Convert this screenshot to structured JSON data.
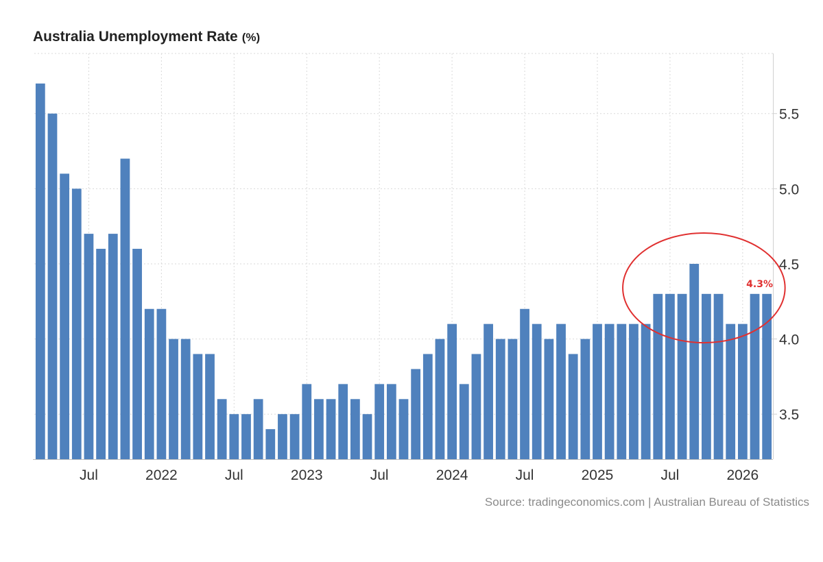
{
  "chart_data": {
    "type": "bar",
    "title": "Australia Unemployment Rate",
    "unit": "(%)",
    "source": "Source: tradingeconomics.com | Australian Bureau of Statistics",
    "series_color": "#4f81bd",
    "highlight_color": "#e03030",
    "ylim": [
      3.2,
      5.9
    ],
    "y_ticks": [
      3.5,
      4.0,
      4.5,
      5.0,
      5.5
    ],
    "y_tick_labels": [
      "3.5",
      "4.0",
      "4.5",
      "5.0",
      "5.5"
    ],
    "grid": true,
    "values": [
      5.7,
      5.5,
      5.1,
      5.0,
      4.7,
      4.6,
      4.7,
      5.2,
      4.6,
      4.2,
      4.2,
      4.0,
      4.0,
      3.9,
      3.9,
      3.6,
      3.5,
      3.5,
      3.6,
      3.4,
      3.5,
      3.5,
      3.7,
      3.6,
      3.6,
      3.7,
      3.6,
      3.5,
      3.7,
      3.7,
      3.6,
      3.8,
      3.9,
      4.0,
      4.1,
      3.7,
      3.9,
      4.1,
      4.0,
      4.0,
      4.2,
      4.1,
      4.0,
      4.1,
      3.9,
      4.0,
      4.1,
      4.1,
      4.1,
      4.1,
      4.1,
      4.3,
      4.3,
      4.3,
      4.5,
      4.3,
      4.3,
      4.1,
      4.1,
      4.3,
      4.3
    ],
    "x_ticks": [
      {
        "index": 4,
        "label": "Jul"
      },
      {
        "index": 10,
        "label": "2022"
      },
      {
        "index": 16,
        "label": "Jul"
      },
      {
        "index": 22,
        "label": "2023"
      },
      {
        "index": 28,
        "label": "Jul"
      },
      {
        "index": 34,
        "label": "2024"
      },
      {
        "index": 40,
        "label": "Jul"
      },
      {
        "index": 46,
        "label": "2025"
      },
      {
        "index": 52,
        "label": "Jul"
      },
      {
        "index": 58,
        "label": "2026"
      }
    ],
    "annotation": {
      "label": "4.3%",
      "start_index": 51,
      "end_index": 60,
      "label_index": 60
    }
  }
}
